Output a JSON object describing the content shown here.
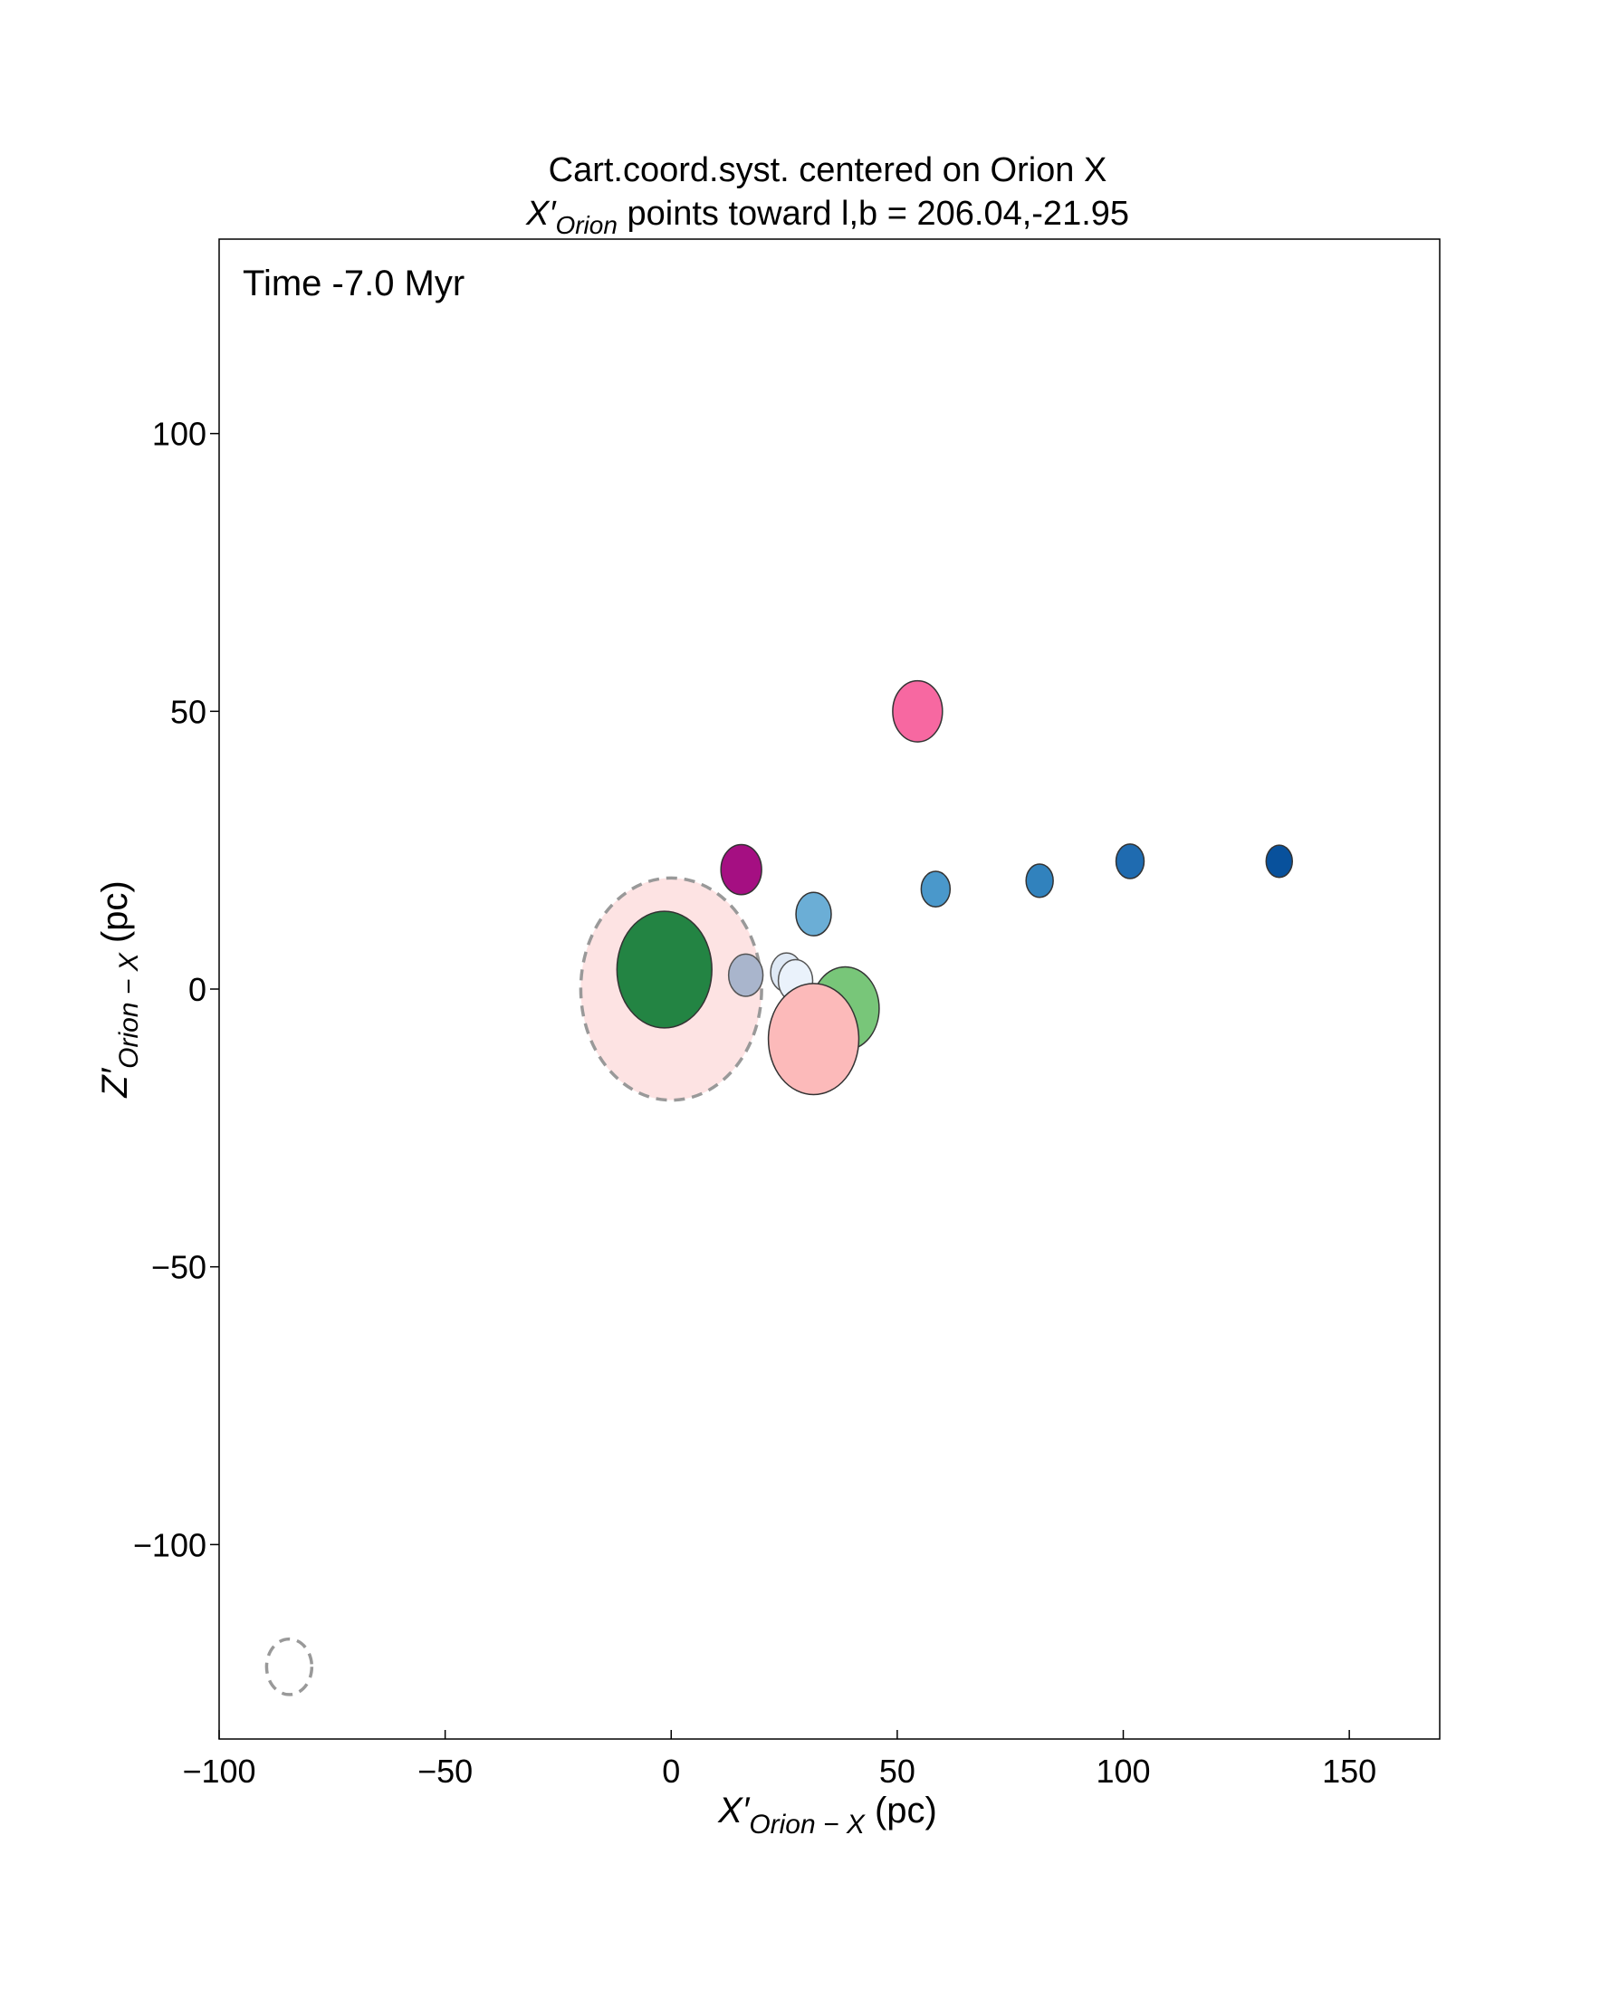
{
  "chart_data": {
    "type": "scatter",
    "title_line1": "Cart.coord.syst. centered on Orion X",
    "title_line2_prefix": "X′",
    "title_line2_sub": "Orion",
    "title_line2_suffix": " points toward l,b = 206.04,-21.95",
    "annotation": "Time  -7.0 Myr",
    "xlabel_main": "X′",
    "xlabel_sub": "Orion − X",
    "xlabel_unit": " (pc)",
    "ylabel_main": "Z′",
    "ylabel_sub": "Orion − X",
    "ylabel_unit": " (pc)",
    "xlim": [
      -100,
      170
    ],
    "ylim": [
      -135,
      135
    ],
    "x_ticks": [
      -100,
      -50,
      0,
      50,
      100,
      150
    ],
    "x_tick_labels": [
      "−100",
      "−50",
      "0",
      "50",
      "100",
      "150"
    ],
    "y_ticks": [
      -100,
      -50,
      0,
      50,
      100
    ],
    "y_tick_labels": [
      "−100",
      "−50",
      "0",
      "50",
      "100"
    ],
    "grid": false,
    "points": [
      {
        "x": 0,
        "y": 0,
        "r": 20,
        "fill": "#fde3e3",
        "stroke": "#999999",
        "dashed": true
      },
      {
        "x": -1.5,
        "y": 3.5,
        "r": 10.5,
        "fill": "#238443",
        "stroke": "#333333",
        "dashed": false
      },
      {
        "x": 15.5,
        "y": 21.5,
        "r": 4.5,
        "fill": "#a50f82",
        "stroke": "#333333",
        "dashed": false
      },
      {
        "x": 16.5,
        "y": 2.5,
        "r": 3.8,
        "fill": "#a9b5cc",
        "stroke": "#555555",
        "dashed": false
      },
      {
        "x": 25.5,
        "y": 3,
        "r": 3.5,
        "fill": "#dfe9f5",
        "stroke": "#555555",
        "dashed": false
      },
      {
        "x": 27.5,
        "y": 1.5,
        "r": 3.8,
        "fill": "#eaf2fb",
        "stroke": "#555555",
        "dashed": false
      },
      {
        "x": 38.5,
        "y": -3.5,
        "r": 7.5,
        "fill": "#78c679",
        "stroke": "#333333",
        "dashed": false
      },
      {
        "x": 31.5,
        "y": -9,
        "r": 10,
        "fill": "#fcbaba",
        "stroke": "#333333",
        "dashed": false
      },
      {
        "x": 31.5,
        "y": 13.5,
        "r": 3.9,
        "fill": "#6baed6",
        "stroke": "#333333",
        "dashed": false
      },
      {
        "x": 54.5,
        "y": 50,
        "r": 5.5,
        "fill": "#f768a1",
        "stroke": "#333333",
        "dashed": false
      },
      {
        "x": 58.5,
        "y": 18,
        "r": 3.2,
        "fill": "#4a98cb",
        "stroke": "#333333",
        "dashed": false
      },
      {
        "x": 81.5,
        "y": 19.5,
        "r": 3,
        "fill": "#3182bd",
        "stroke": "#333333",
        "dashed": false
      },
      {
        "x": 101.5,
        "y": 23,
        "r": 3.1,
        "fill": "#1f6bb0",
        "stroke": "#333333",
        "dashed": false
      },
      {
        "x": 134.5,
        "y": 23,
        "r": 2.9,
        "fill": "#08519c",
        "stroke": "#333333",
        "dashed": false
      },
      {
        "x": -84.5,
        "y": -122,
        "r": 5,
        "fill": "none",
        "stroke": "#999999",
        "dashed": true
      }
    ]
  }
}
